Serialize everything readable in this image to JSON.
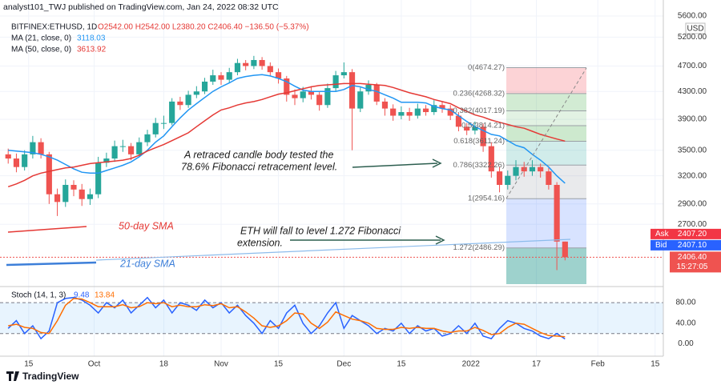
{
  "header": {
    "published": "analyst101_TWJ published on TradingView.com, Jan 24, 2022 08:32 UTC",
    "logo": "TradingView"
  },
  "chart_data": {
    "type": "candlestick",
    "symbol": "BITFINEX:ETHUSD, 1D",
    "ohlc_legend": "O2542.00 H2542.00 L2380.20 C2406.40 −136.50 (−5.37%)",
    "currency": "USD",
    "log_scale": true,
    "up_color": "#26a69a",
    "down_color": "#ef5350",
    "ylim": [
      2190,
      5840
    ],
    "yticks": [
      {
        "value": 5600,
        "label": "5600.00"
      },
      {
        "value": 5200,
        "label": "5200.00"
      },
      {
        "value": 4700,
        "label": "4700.00"
      },
      {
        "value": 4300,
        "label": "4300.00"
      },
      {
        "value": 3900,
        "label": "3900.00"
      },
      {
        "value": 3500,
        "label": "3500.00"
      },
      {
        "value": 3200,
        "label": "3200.00"
      },
      {
        "value": 2900,
        "label": "2900.00"
      },
      {
        "value": 2700,
        "label": "2700.00"
      }
    ],
    "xlim": [
      "Sep 8",
      "Feb 17"
    ],
    "xticks": [
      {
        "value": "Sep 15",
        "label": "15"
      },
      {
        "value": "Oct 1",
        "label": "Oct"
      },
      {
        "value": "Oct 18",
        "label": "18"
      },
      {
        "value": "Nov 1",
        "label": "Nov"
      },
      {
        "value": "Nov 15",
        "label": "15"
      },
      {
        "value": "Dec 1",
        "label": "Dec"
      },
      {
        "value": "Dec 15",
        "label": "15"
      },
      {
        "value": "Jan 1",
        "label": "2022"
      },
      {
        "value": "Jan 17",
        "label": "17"
      },
      {
        "value": "Feb 1",
        "label": "Feb"
      },
      {
        "value": "Feb 15",
        "label": "15"
      }
    ],
    "x": [
      "Sep 10",
      "Sep 12",
      "Sep 14",
      "Sep 16",
      "Sep 18",
      "Sep 20",
      "Sep 22",
      "Sep 24",
      "Sep 26",
      "Sep 28",
      "Sep 30",
      "Oct 2",
      "Oct 4",
      "Oct 6",
      "Oct 8",
      "Oct 10",
      "Oct 12",
      "Oct 14",
      "Oct 16",
      "Oct 18",
      "Oct 20",
      "Oct 22",
      "Oct 24",
      "Oct 26",
      "Oct 28",
      "Oct 30",
      "Nov 1",
      "Nov 3",
      "Nov 5",
      "Nov 7",
      "Nov 9",
      "Nov 11",
      "Nov 13",
      "Nov 15",
      "Nov 17",
      "Nov 19",
      "Nov 21",
      "Nov 23",
      "Nov 25",
      "Nov 27",
      "Nov 29",
      "Dec 1",
      "Dec 3",
      "Dec 5",
      "Dec 7",
      "Dec 9",
      "Dec 11",
      "Dec 13",
      "Dec 15",
      "Dec 17",
      "Dec 19",
      "Dec 21",
      "Dec 23",
      "Dec 25",
      "Dec 27",
      "Dec 29",
      "Dec 31",
      "Jan 2",
      "Jan 4",
      "Jan 6",
      "Jan 8",
      "Jan 10",
      "Jan 12",
      "Jan 14",
      "Jan 16",
      "Jan 18",
      "Jan 20",
      "Jan 22",
      "Jan 24"
    ],
    "candles": [
      [
        3450,
        3520,
        3340,
        3400
      ],
      [
        3400,
        3460,
        3240,
        3300
      ],
      [
        3300,
        3500,
        3260,
        3450
      ],
      [
        3450,
        3680,
        3400,
        3600
      ],
      [
        3600,
        3650,
        3400,
        3450
      ],
      [
        3450,
        3480,
        2900,
        3000
      ],
      [
        3000,
        3060,
        2780,
        2920
      ],
      [
        2920,
        3160,
        2870,
        3100
      ],
      [
        3100,
        3150,
        2980,
        3050
      ],
      [
        3050,
        3110,
        2880,
        2950
      ],
      [
        2950,
        3060,
        2890,
        3000
      ],
      [
        3000,
        3420,
        2960,
        3350
      ],
      [
        3350,
        3470,
        3300,
        3400
      ],
      [
        3400,
        3620,
        3360,
        3550
      ],
      [
        3550,
        3630,
        3480,
        3550
      ],
      [
        3550,
        3590,
        3380,
        3450
      ],
      [
        3450,
        3660,
        3420,
        3600
      ],
      [
        3600,
        3760,
        3550,
        3700
      ],
      [
        3700,
        3920,
        3660,
        3850
      ],
      [
        3850,
        3950,
        3770,
        3850
      ],
      [
        3850,
        4200,
        3820,
        4150
      ],
      [
        4150,
        4220,
        4030,
        4100
      ],
      [
        4100,
        4310,
        4060,
        4250
      ],
      [
        4250,
        4380,
        4200,
        4300
      ],
      [
        4300,
        4510,
        4260,
        4450
      ],
      [
        4450,
        4640,
        4400,
        4550
      ],
      [
        4550,
        4600,
        4400,
        4480
      ],
      [
        4480,
        4670,
        4430,
        4600
      ],
      [
        4600,
        4820,
        4550,
        4750
      ],
      [
        4750,
        4800,
        4630,
        4700
      ],
      [
        4700,
        4870,
        4650,
        4800
      ],
      [
        4800,
        4850,
        4640,
        4700
      ],
      [
        4700,
        4760,
        4540,
        4600
      ],
      [
        4600,
        4660,
        4420,
        4500
      ],
      [
        4500,
        4540,
        4150,
        4250
      ],
      [
        4250,
        4330,
        4100,
        4200
      ],
      [
        4200,
        4370,
        4140,
        4300
      ],
      [
        4300,
        4380,
        4180,
        4250
      ],
      [
        4250,
        4300,
        4020,
        4100
      ],
      [
        4100,
        4420,
        4060,
        4350
      ],
      [
        4350,
        4620,
        4300,
        4550
      ],
      [
        4550,
        4760,
        4500,
        4600
      ],
      [
        4600,
        4650,
        3500,
        4050
      ],
      [
        4050,
        4360,
        4000,
        4300
      ],
      [
        4300,
        4470,
        4250,
        4400
      ],
      [
        4400,
        4430,
        4100,
        4150
      ],
      [
        4150,
        4200,
        3950,
        4050
      ],
      [
        4050,
        4110,
        3880,
        3950
      ],
      [
        3950,
        4080,
        3900,
        4000
      ],
      [
        4000,
        4060,
        3880,
        3950
      ],
      [
        3950,
        4120,
        3910,
        4050
      ],
      [
        4050,
        4100,
        3950,
        4000
      ],
      [
        4000,
        4170,
        3960,
        4100
      ],
      [
        4100,
        4150,
        3990,
        4050
      ],
      [
        4050,
        4100,
        3890,
        3950
      ],
      [
        3950,
        3990,
        3740,
        3800
      ],
      [
        3800,
        3850,
        3690,
        3750
      ],
      [
        3750,
        3870,
        3700,
        3800
      ],
      [
        3800,
        3840,
        3480,
        3550
      ],
      [
        3550,
        3600,
        3180,
        3250
      ],
      [
        3250,
        3300,
        3020,
        3100
      ],
      [
        3100,
        3260,
        3050,
        3200
      ],
      [
        3200,
        3380,
        3150,
        3300
      ],
      [
        3300,
        3360,
        3190,
        3250
      ],
      [
        3250,
        3380,
        3200,
        3300
      ],
      [
        3300,
        3340,
        3180,
        3250
      ],
      [
        3250,
        3290,
        3050,
        3100
      ],
      [
        3100,
        3130,
        2300,
        2542
      ],
      [
        2542,
        2542,
        2380.2,
        2406.4
      ]
    ],
    "series": [
      {
        "name": "MA (21, close, 0)",
        "color": "#2196f3",
        "values": [
          3500,
          3490,
          3480,
          3470,
          3450,
          3420,
          3380,
          3330,
          3280,
          3240,
          3230,
          3230,
          3260,
          3290,
          3320,
          3360,
          3420,
          3500,
          3600,
          3680,
          3800,
          3920,
          4030,
          4120,
          4210,
          4300,
          4370,
          4430,
          4500,
          4530,
          4550,
          4560,
          4540,
          4500,
          4450,
          4380,
          4320,
          4300,
          4300,
          4300,
          4300,
          4330,
          4390,
          4370,
          4330,
          4300,
          4250,
          4200,
          4140,
          4140,
          4140,
          4130,
          4080,
          4050,
          4030,
          3950,
          3870,
          3800,
          3750,
          3700,
          3680,
          3620,
          3560,
          3530,
          3450,
          3380,
          3300,
          3200,
          3118.03
        ]
      },
      {
        "name": "MA (50, close, 0)",
        "color": "#e53935",
        "values": [
          3080,
          3110,
          3150,
          3200,
          3230,
          3250,
          3270,
          3290,
          3300,
          3320,
          3340,
          3350,
          3360,
          3370,
          3380,
          3400,
          3440,
          3490,
          3530,
          3570,
          3620,
          3670,
          3720,
          3800,
          3880,
          3960,
          4030,
          4060,
          4100,
          4130,
          4150,
          4180,
          4220,
          4260,
          4280,
          4310,
          4340,
          4370,
          4390,
          4400,
          4410,
          4420,
          4420,
          4420,
          4410,
          4400,
          4390,
          4360,
          4320,
          4280,
          4250,
          4220,
          4180,
          4150,
          4120,
          4060,
          4010,
          3960,
          3930,
          3890,
          3860,
          3830,
          3800,
          3780,
          3740,
          3700,
          3670,
          3640,
          3613.92
        ]
      }
    ],
    "fibonacci": [
      {
        "value": 4674.27,
        "label": "0(4674.27)",
        "color": "rgba(242,54,69,0.22)"
      },
      {
        "value": 4268.32,
        "label": "0.236(4268.32)",
        "color": "rgba(76,175,80,0.25)"
      },
      {
        "value": 4017.19,
        "label": "0.382(4017.19)",
        "color": "rgba(76,175,80,0.16)"
      },
      {
        "value": 3814.21,
        "label": "0.5(3814.21)",
        "color": "rgba(76,175,80,0.28)"
      },
      {
        "value": 3611.24,
        "label": "0.618(3611.24)",
        "color": "rgba(0,150,136,0.18)"
      },
      {
        "value": 3322.26,
        "label": "0.786(3322.26)",
        "color": "rgba(120,123,134,0.16)"
      },
      {
        "value": 2954.16,
        "label": "1(2954.16)",
        "color": "rgba(41,98,255,0.18)"
      },
      {
        "value": 2486.29,
        "label": "1.272(2486.29)",
        "color": "rgba(0,137,123,0.38)"
      }
    ],
    "quotes": [
      {
        "name": "Ask",
        "value": 2407.2,
        "label": "2407.20",
        "color": "#f23645"
      },
      {
        "name": "Bid",
        "value": 2407.1,
        "label": "2407.10",
        "color": "#2962ff"
      }
    ],
    "last_price": {
      "value": 2406.4,
      "label": "2406.40",
      "countdown": "15:27:05"
    },
    "annotations": [
      "A retraced candle body tested the",
      "78.6% Fibonacci retracement level.",
      "ETH will fall to level  1.272 Fibonacci",
      "extension.",
      "50-day SMA",
      "21-day SMA"
    ],
    "stoch": {
      "name": "Stoch (14, 1, 3)",
      "ylim": [
        -10,
        105
      ],
      "yticks": [
        {
          "value": 80,
          "label": "80.00"
        },
        {
          "value": 40,
          "label": "40.00"
        },
        {
          "value": 0,
          "label": "0.00"
        }
      ],
      "bands": [
        80,
        20
      ],
      "series": [
        {
          "name": "%K",
          "color": "#2962ff",
          "values": [
            30,
            45,
            20,
            35,
            10,
            25,
            80,
            88,
            90,
            85,
            75,
            60,
            80,
            70,
            85,
            60,
            75,
            90,
            70,
            85,
            60,
            80,
            75,
            65,
            85,
            70,
            80,
            60,
            75,
            55,
            40,
            20,
            45,
            30,
            60,
            75,
            40,
            20,
            35,
            60,
            80,
            30,
            55,
            45,
            35,
            20,
            30,
            25,
            40,
            20,
            35,
            25,
            30,
            15,
            20,
            35,
            20,
            40,
            15,
            10,
            30,
            45,
            40,
            30,
            25,
            15,
            10,
            20,
            9.48
          ]
        },
        {
          "name": "%D",
          "color": "#ff6d00",
          "values": [
            35,
            38,
            32,
            30,
            22,
            20,
            45,
            75,
            88,
            87,
            80,
            72,
            72,
            72,
            76,
            70,
            72,
            80,
            78,
            80,
            72,
            75,
            72,
            72,
            76,
            74,
            78,
            70,
            72,
            62,
            50,
            35,
            32,
            35,
            45,
            60,
            58,
            40,
            30,
            42,
            62,
            55,
            48,
            45,
            40,
            30,
            28,
            28,
            32,
            30,
            32,
            30,
            30,
            25,
            22,
            25,
            25,
            32,
            26,
            18,
            20,
            32,
            40,
            38,
            30,
            22,
            16,
            15,
            13.84
          ]
        }
      ]
    }
  }
}
